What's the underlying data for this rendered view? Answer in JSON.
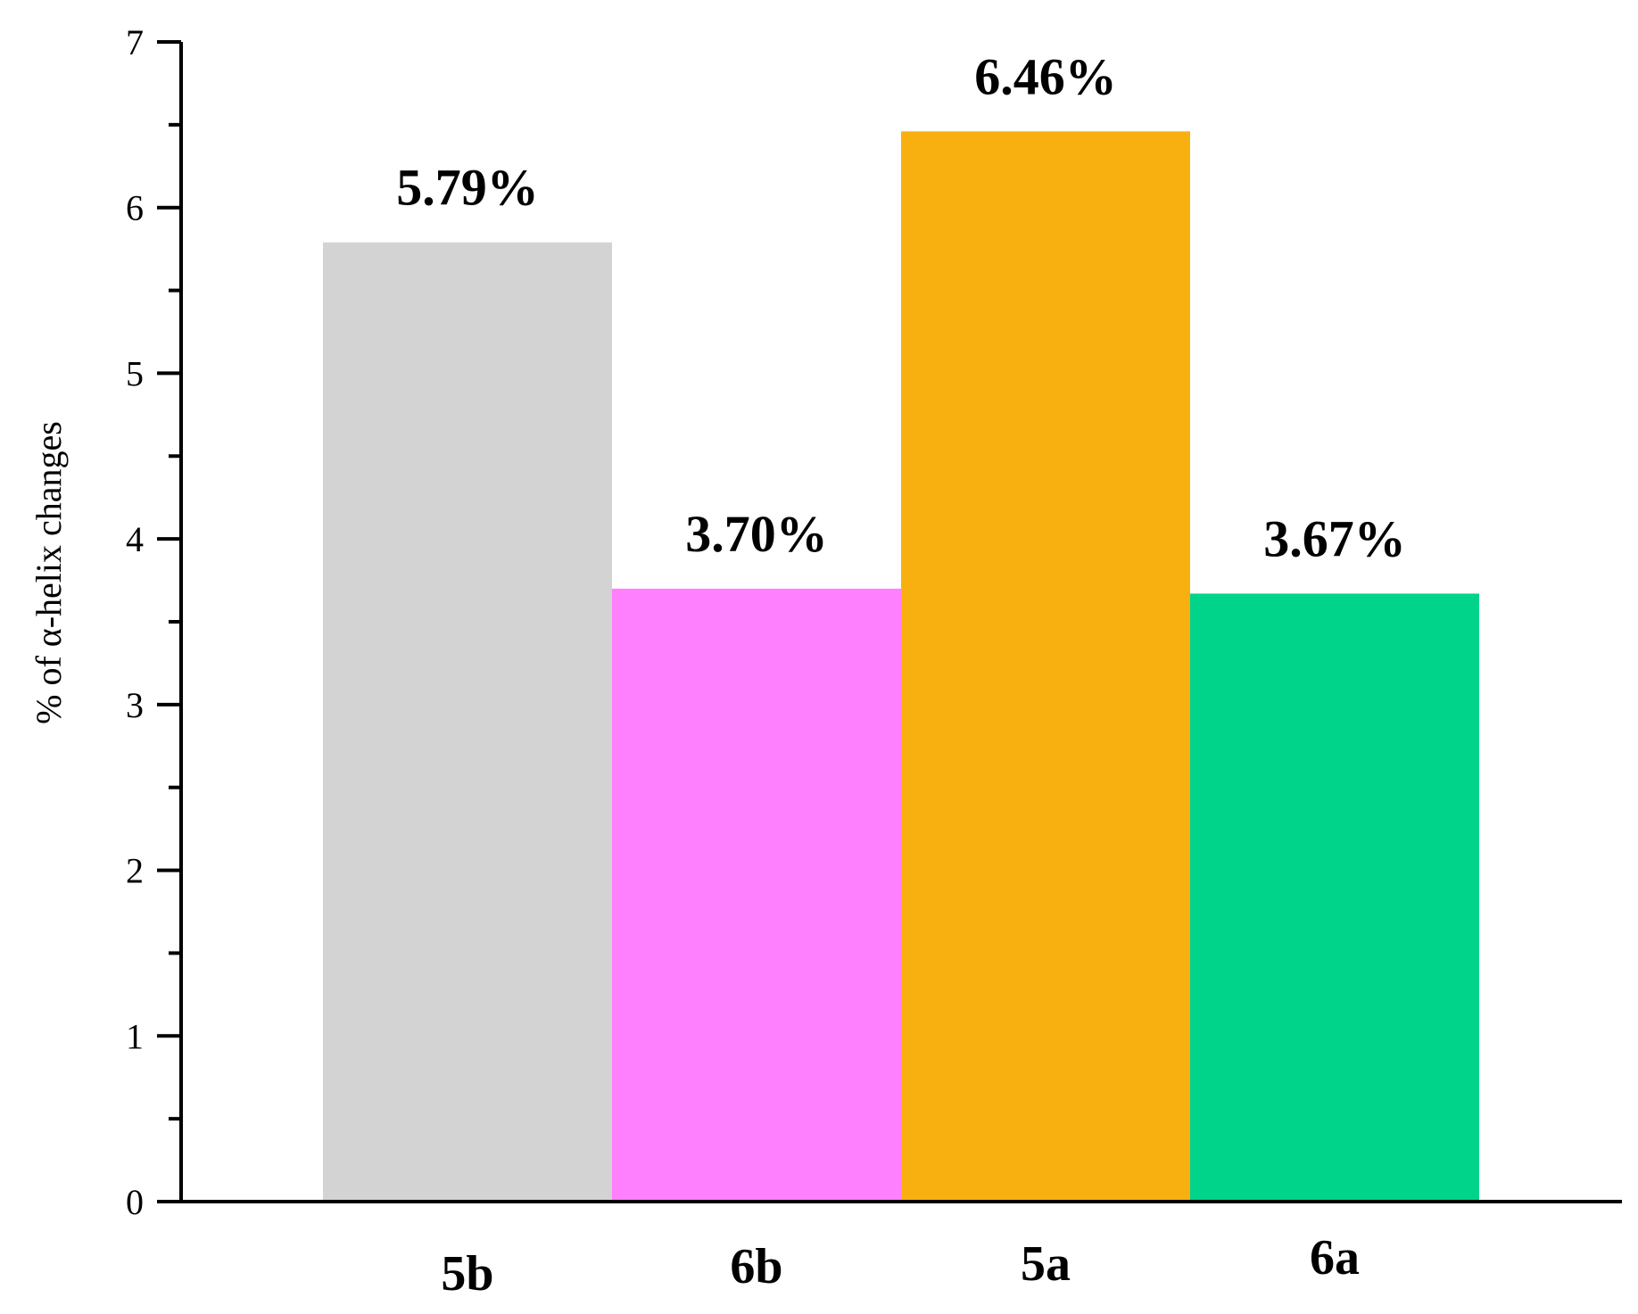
{
  "chart_data": {
    "type": "bar",
    "categories": [
      "5b",
      "6b",
      "5a",
      "6a"
    ],
    "values": [
      5.79,
      3.7,
      6.46,
      3.67
    ],
    "data_labels": [
      "5.79%",
      "3.70%",
      "6.46%",
      "3.67%"
    ],
    "colors": [
      "#d3d3d3",
      "#ff80ff",
      "#f8b011",
      "#00d38a"
    ],
    "title": "",
    "xlabel": "",
    "ylabel": "% of α-helix changes",
    "ylim": [
      0,
      7
    ],
    "yticks": [
      0,
      1,
      2,
      3,
      4,
      5,
      6,
      7
    ],
    "grid": false,
    "legend": "none"
  }
}
